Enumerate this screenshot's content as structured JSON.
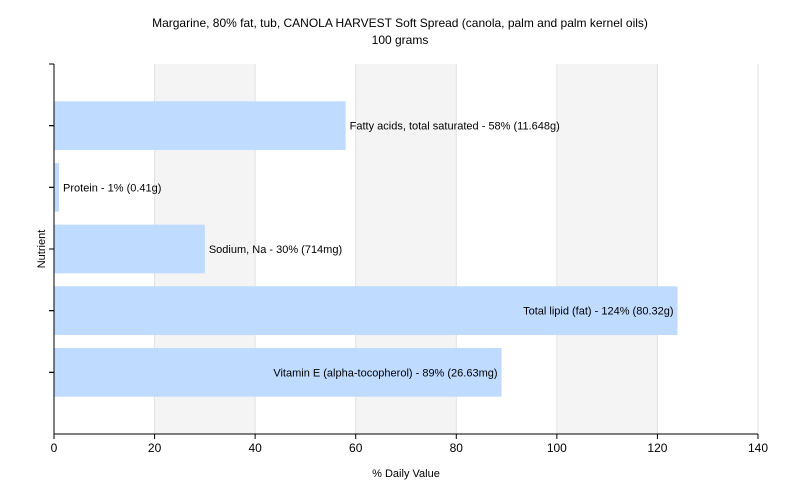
{
  "chart_data": {
    "type": "bar",
    "orientation": "horizontal",
    "title": "Margarine, 80% fat, tub, CANOLA HARVEST Soft Spread (canola, palm and palm kernel oils)",
    "subtitle": "100 grams",
    "xlabel": "% Daily Value",
    "ylabel": "Nutrient",
    "xlim": [
      0,
      140
    ],
    "xticks": [
      0,
      20,
      40,
      60,
      80,
      100,
      120,
      140
    ],
    "grid": true,
    "legend": "none",
    "bar_color": "#bfdbff",
    "categories": [
      "Fatty acids, total saturated",
      "Protein",
      "Sodium, Na",
      "Total lipid (fat)",
      "Vitamin E (alpha-tocopherol)"
    ],
    "values": [
      58,
      1,
      30,
      124,
      89
    ],
    "labels": [
      "Fatty acids, total saturated - 58% (11.648g)",
      "Protein - 1% (0.41g)",
      "Sodium, Na - 30% (714mg)",
      "Total lipid (fat) - 124% (80.32g)",
      "Vitamin E (alpha-tocopherol) - 89% (26.63mg)"
    ]
  }
}
